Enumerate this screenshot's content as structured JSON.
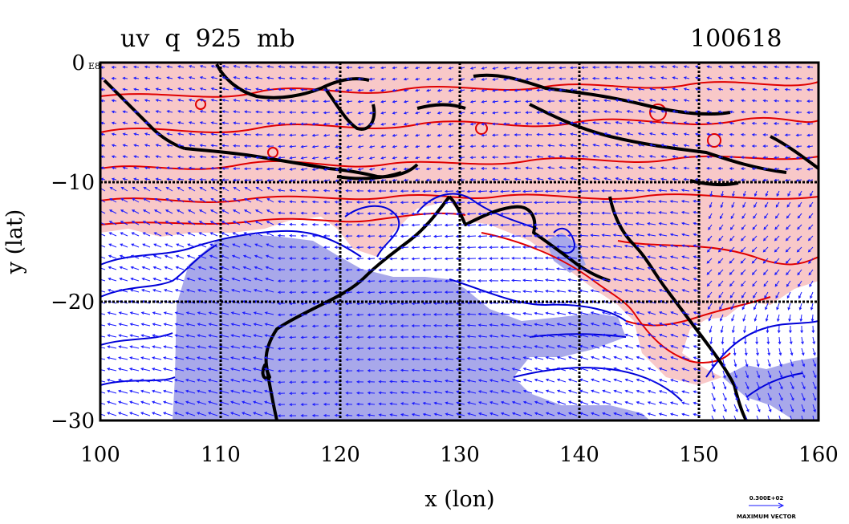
{
  "header": {
    "title": "uv  q  925  mb",
    "date": "100618"
  },
  "axes": {
    "xlabel": "x (lon)",
    "ylabel": "y (lat)",
    "x_ticks": [
      "100",
      "110",
      "120",
      "130",
      "140",
      "150",
      "160"
    ],
    "y_ticks": [
      "0",
      "−10",
      "−20",
      "−30"
    ],
    "y_top_tag": "E8"
  },
  "legend": {
    "ref_value": "0.300E+02",
    "ref_label": "MAXIMUM VECTOR"
  },
  "chart_data": {
    "type": "map",
    "title": "uv  q  925  mb",
    "date": "100618",
    "xlabel": "x (lon)",
    "ylabel": "y (lat)",
    "xlim": [
      100,
      160
    ],
    "ylim": [
      -30,
      0
    ],
    "x_ticks": [
      100,
      110,
      120,
      130,
      140,
      150,
      160
    ],
    "y_ticks": [
      0,
      -10,
      -20,
      -30
    ],
    "grid": true,
    "fields": [
      "wind vectors",
      "specific humidity anomaly contours"
    ],
    "colors": {
      "positive_fill": "#f8c8c8",
      "negative_fill": "#a8a8ea",
      "positive_contour": "#e00000",
      "negative_contour": "#0000d8",
      "vector": "#1a1aff",
      "coastline": "#000000"
    }
  }
}
